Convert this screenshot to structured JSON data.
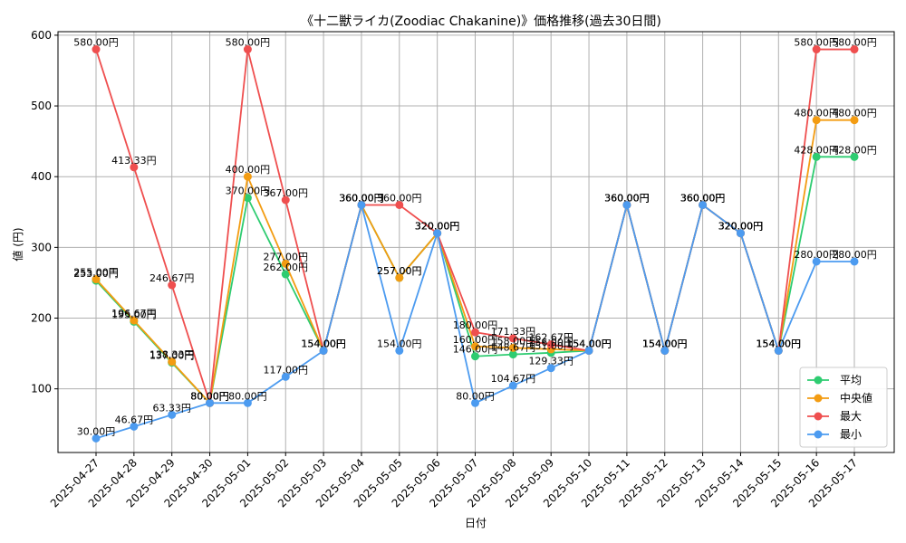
{
  "chart_data": {
    "type": "line",
    "title": "《十二獣ライカ(Zoodiac Chakanine)》価格推移(過去30日間)",
    "xlabel": "日付",
    "ylabel": "値 (円)",
    "value_suffix": "円",
    "ylim": [
      10,
      605
    ],
    "yticks": [
      100,
      200,
      300,
      400,
      500,
      600
    ],
    "grid": true,
    "legend_position": "lower-right",
    "categories": [
      "2025-04-27",
      "2025-04-28",
      "2025-04-29",
      "2025-04-30",
      "2025-05-01",
      "2025-05-02",
      "2025-05-03",
      "2025-05-04",
      "2025-05-05",
      "2025-05-06",
      "2025-05-07",
      "2025-05-08",
      "2025-05-09",
      "2025-05-10",
      "2025-05-11",
      "2025-05-12",
      "2025-05-13",
      "2025-05-14",
      "2025-05-15",
      "2025-05-16",
      "2025-05-17"
    ],
    "series": [
      {
        "name": "平均",
        "color": "#2ecc71",
        "values": [
          253,
          195,
          137,
          80,
          370,
          262,
          154,
          360,
          257,
          320,
          146,
          148.67,
          151,
          154,
          360,
          154,
          360,
          320,
          154,
          428,
          428
        ]
      },
      {
        "name": "中央値",
        "color": "#f39c12",
        "values": [
          255,
          196.67,
          138.33,
          80,
          400,
          277,
          154,
          360,
          257,
          320,
          160,
          158,
          156,
          154,
          360,
          154,
          360,
          320,
          154,
          480,
          480
        ]
      },
      {
        "name": "最大",
        "color": "#ef4f4f",
        "values": [
          580,
          413.33,
          246.67,
          80,
          580,
          367,
          154,
          360,
          360,
          320,
          180,
          171.33,
          162.67,
          154,
          360,
          154,
          360,
          320,
          154,
          580,
          580
        ]
      },
      {
        "name": "最小",
        "color": "#4c9bf0",
        "values": [
          30,
          46.67,
          63.33,
          80,
          80,
          117,
          154,
          360,
          154,
          320,
          80,
          104.67,
          129.33,
          154,
          360,
          154,
          360,
          320,
          154,
          280,
          280
        ]
      }
    ]
  }
}
